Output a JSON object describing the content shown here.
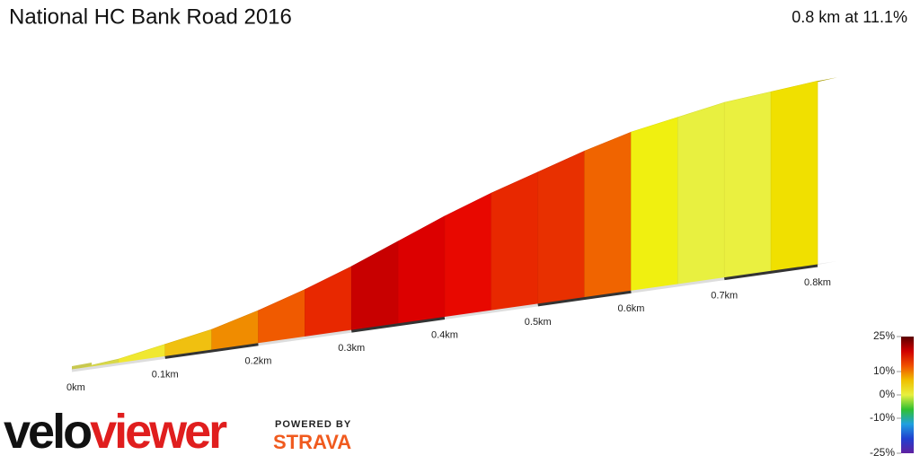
{
  "chart_data": {
    "type": "profile",
    "title": "National HC Bank Road 2016",
    "subtitle": "0.8 km at 11.1%",
    "x": [
      0,
      0.05,
      0.1,
      0.15,
      0.2,
      0.25,
      0.3,
      0.35,
      0.4,
      0.45,
      0.5,
      0.55,
      0.6,
      0.65,
      0.7,
      0.75,
      0.8
    ],
    "elevation": [
      0,
      2,
      6,
      10,
      16,
      23,
      31,
      40,
      49,
      57,
      64,
      71,
      77,
      81,
      85,
      87,
      89
    ],
    "colors": [
      "#c8c850",
      "#d8d848",
      "#f0e830",
      "#f0c010",
      "#f08c00",
      "#f05a00",
      "#e82800",
      "#c80000",
      "#dc0000",
      "#e80800",
      "#e82800",
      "#e83000",
      "#f06400",
      "#f0f010",
      "#e8f040",
      "#eaf040",
      "#f0e000"
    ],
    "xlim": [
      0,
      0.8
    ],
    "xticks": [
      {
        "value": 0,
        "label": "0km"
      },
      {
        "value": 0.1,
        "label": "0.1km"
      },
      {
        "value": 0.2,
        "label": "0.2km"
      },
      {
        "value": 0.3,
        "label": "0.3km"
      },
      {
        "value": 0.4,
        "label": "0.4km"
      },
      {
        "value": 0.5,
        "label": "0.5km"
      },
      {
        "value": 0.6,
        "label": "0.6km"
      },
      {
        "value": 0.7,
        "label": "0.7km"
      },
      {
        "value": 0.8,
        "label": "0.8km"
      }
    ],
    "colorbar": {
      "lim": [
        -25,
        25
      ],
      "ticks": [
        {
          "value": 25,
          "label": "25%"
        },
        {
          "value": 10,
          "label": "10%"
        },
        {
          "value": 0,
          "label": "0%"
        },
        {
          "value": -10,
          "label": "-10%"
        },
        {
          "value": -25,
          "label": "-25%"
        }
      ],
      "colors": [
        "#5a0000",
        "#d00000",
        "#f05000",
        "#f0c000",
        "#e8f040",
        "#30c030",
        "#20a0e0",
        "#2040d0",
        "#6020a0"
      ]
    }
  },
  "branding": {
    "velo": "velo",
    "viewer": "viewer",
    "powered": "POWERED BY",
    "strava": "STRAVA"
  }
}
